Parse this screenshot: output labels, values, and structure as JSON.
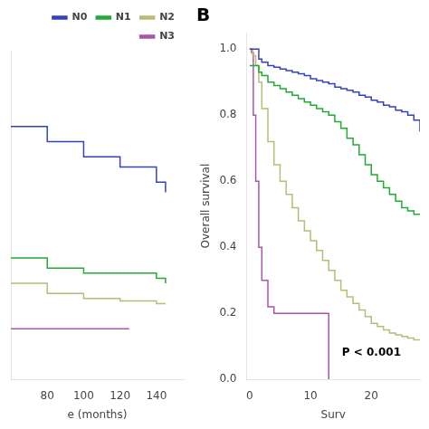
{
  "chart_data": [
    {
      "type": "step",
      "series": [
        {
          "name": "N0",
          "color": "#3344bb",
          "x": [
            60,
            80,
            100,
            120,
            140,
            145
          ],
          "values": [
            0.5,
            0.47,
            0.44,
            0.42,
            0.39,
            0.37
          ]
        },
        {
          "name": "N1",
          "color": "#22aa33",
          "x": [
            60,
            80,
            100,
            120,
            140,
            145
          ],
          "values": [
            0.24,
            0.22,
            0.21,
            0.21,
            0.2,
            0.19
          ]
        },
        {
          "name": "N2",
          "color": "#bbbb77",
          "x": [
            60,
            80,
            100,
            120,
            140,
            145
          ],
          "values": [
            0.19,
            0.17,
            0.16,
            0.155,
            0.15,
            0.15
          ]
        },
        {
          "name": "N3",
          "color": "#aa55aa",
          "x": [
            60,
            92,
            92.5,
            125
          ],
          "values": [
            0.1,
            0.1,
            0.1,
            0.1
          ]
        }
      ],
      "x_label": "e (months)",
      "xlim": [
        60,
        155
      ],
      "xticks": [
        80,
        100,
        120,
        140
      ],
      "ylim": [
        0.0,
        0.65
      ],
      "tick_labels": "x",
      "grid": false,
      "legend": "upper right"
    },
    {
      "type": "step",
      "title": "B",
      "series": [
        {
          "name": "N0",
          "color": "#3344bb",
          "x": [
            0,
            1,
            1.5,
            2,
            3,
            4,
            5,
            6,
            7,
            8,
            9,
            10,
            11,
            12,
            13,
            14,
            15,
            16,
            17,
            18,
            19,
            20,
            21,
            22,
            23,
            24,
            25,
            26,
            27,
            28
          ],
          "values": [
            1.0,
            1.0,
            0.97,
            0.96,
            0.95,
            0.945,
            0.94,
            0.935,
            0.93,
            0.925,
            0.92,
            0.91,
            0.905,
            0.9,
            0.895,
            0.885,
            0.88,
            0.875,
            0.87,
            0.86,
            0.855,
            0.845,
            0.84,
            0.83,
            0.825,
            0.815,
            0.81,
            0.8,
            0.785,
            0.75
          ]
        },
        {
          "name": "N1",
          "color": "#22aa33",
          "x": [
            0,
            1,
            1.5,
            2,
            3,
            4,
            5,
            6,
            7,
            8,
            9,
            10,
            11,
            12,
            13,
            14,
            15,
            16,
            17,
            18,
            19,
            20,
            21,
            22,
            23,
            24,
            25,
            26,
            27,
            28
          ],
          "values": [
            0.95,
            0.95,
            0.93,
            0.92,
            0.9,
            0.89,
            0.88,
            0.87,
            0.86,
            0.85,
            0.84,
            0.83,
            0.82,
            0.81,
            0.8,
            0.78,
            0.76,
            0.73,
            0.71,
            0.68,
            0.65,
            0.62,
            0.6,
            0.58,
            0.56,
            0.54,
            0.52,
            0.51,
            0.5,
            0.5
          ]
        },
        {
          "name": "N2",
          "color": "#bbbb77",
          "x": [
            0,
            0.5,
            1,
            1.5,
            2,
            3,
            4,
            5,
            6,
            7,
            8,
            9,
            10,
            11,
            12,
            13,
            14,
            15,
            16,
            17,
            18,
            19,
            20,
            21,
            22,
            23,
            24,
            25,
            26,
            27,
            28
          ],
          "values": [
            1.0,
            0.98,
            0.95,
            0.9,
            0.82,
            0.72,
            0.65,
            0.6,
            0.56,
            0.52,
            0.48,
            0.45,
            0.42,
            0.39,
            0.36,
            0.33,
            0.3,
            0.27,
            0.25,
            0.23,
            0.21,
            0.19,
            0.17,
            0.16,
            0.15,
            0.14,
            0.135,
            0.13,
            0.125,
            0.12,
            0.12
          ]
        },
        {
          "name": "N3",
          "color": "#aa55aa",
          "x": [
            0,
            0.3,
            0.6,
            1.0,
            1.5,
            2,
            3,
            4,
            5,
            6,
            7,
            8,
            9,
            10,
            11,
            12,
            13
          ],
          "values": [
            1.0,
            0.99,
            0.8,
            0.6,
            0.4,
            0.3,
            0.22,
            0.2,
            0.2,
            0.2,
            0.2,
            0.2,
            0.2,
            0.2,
            0.2,
            0.2,
            0.0
          ]
        }
      ],
      "x_label": "Surv",
      "y_label": "Overall survival",
      "xlim": [
        -0.5,
        28
      ],
      "xticks": [
        0,
        10,
        20
      ],
      "ylim": [
        0.0,
        1.05
      ],
      "yticks": [
        {
          "value": 0.0,
          "label": "0.0"
        },
        0.2,
        0.4,
        0.6,
        0.8,
        {
          "value": 1.0,
          "label": "1.0"
        }
      ],
      "grid": false,
      "annotations": [
        "P < 0.001"
      ]
    }
  ]
}
